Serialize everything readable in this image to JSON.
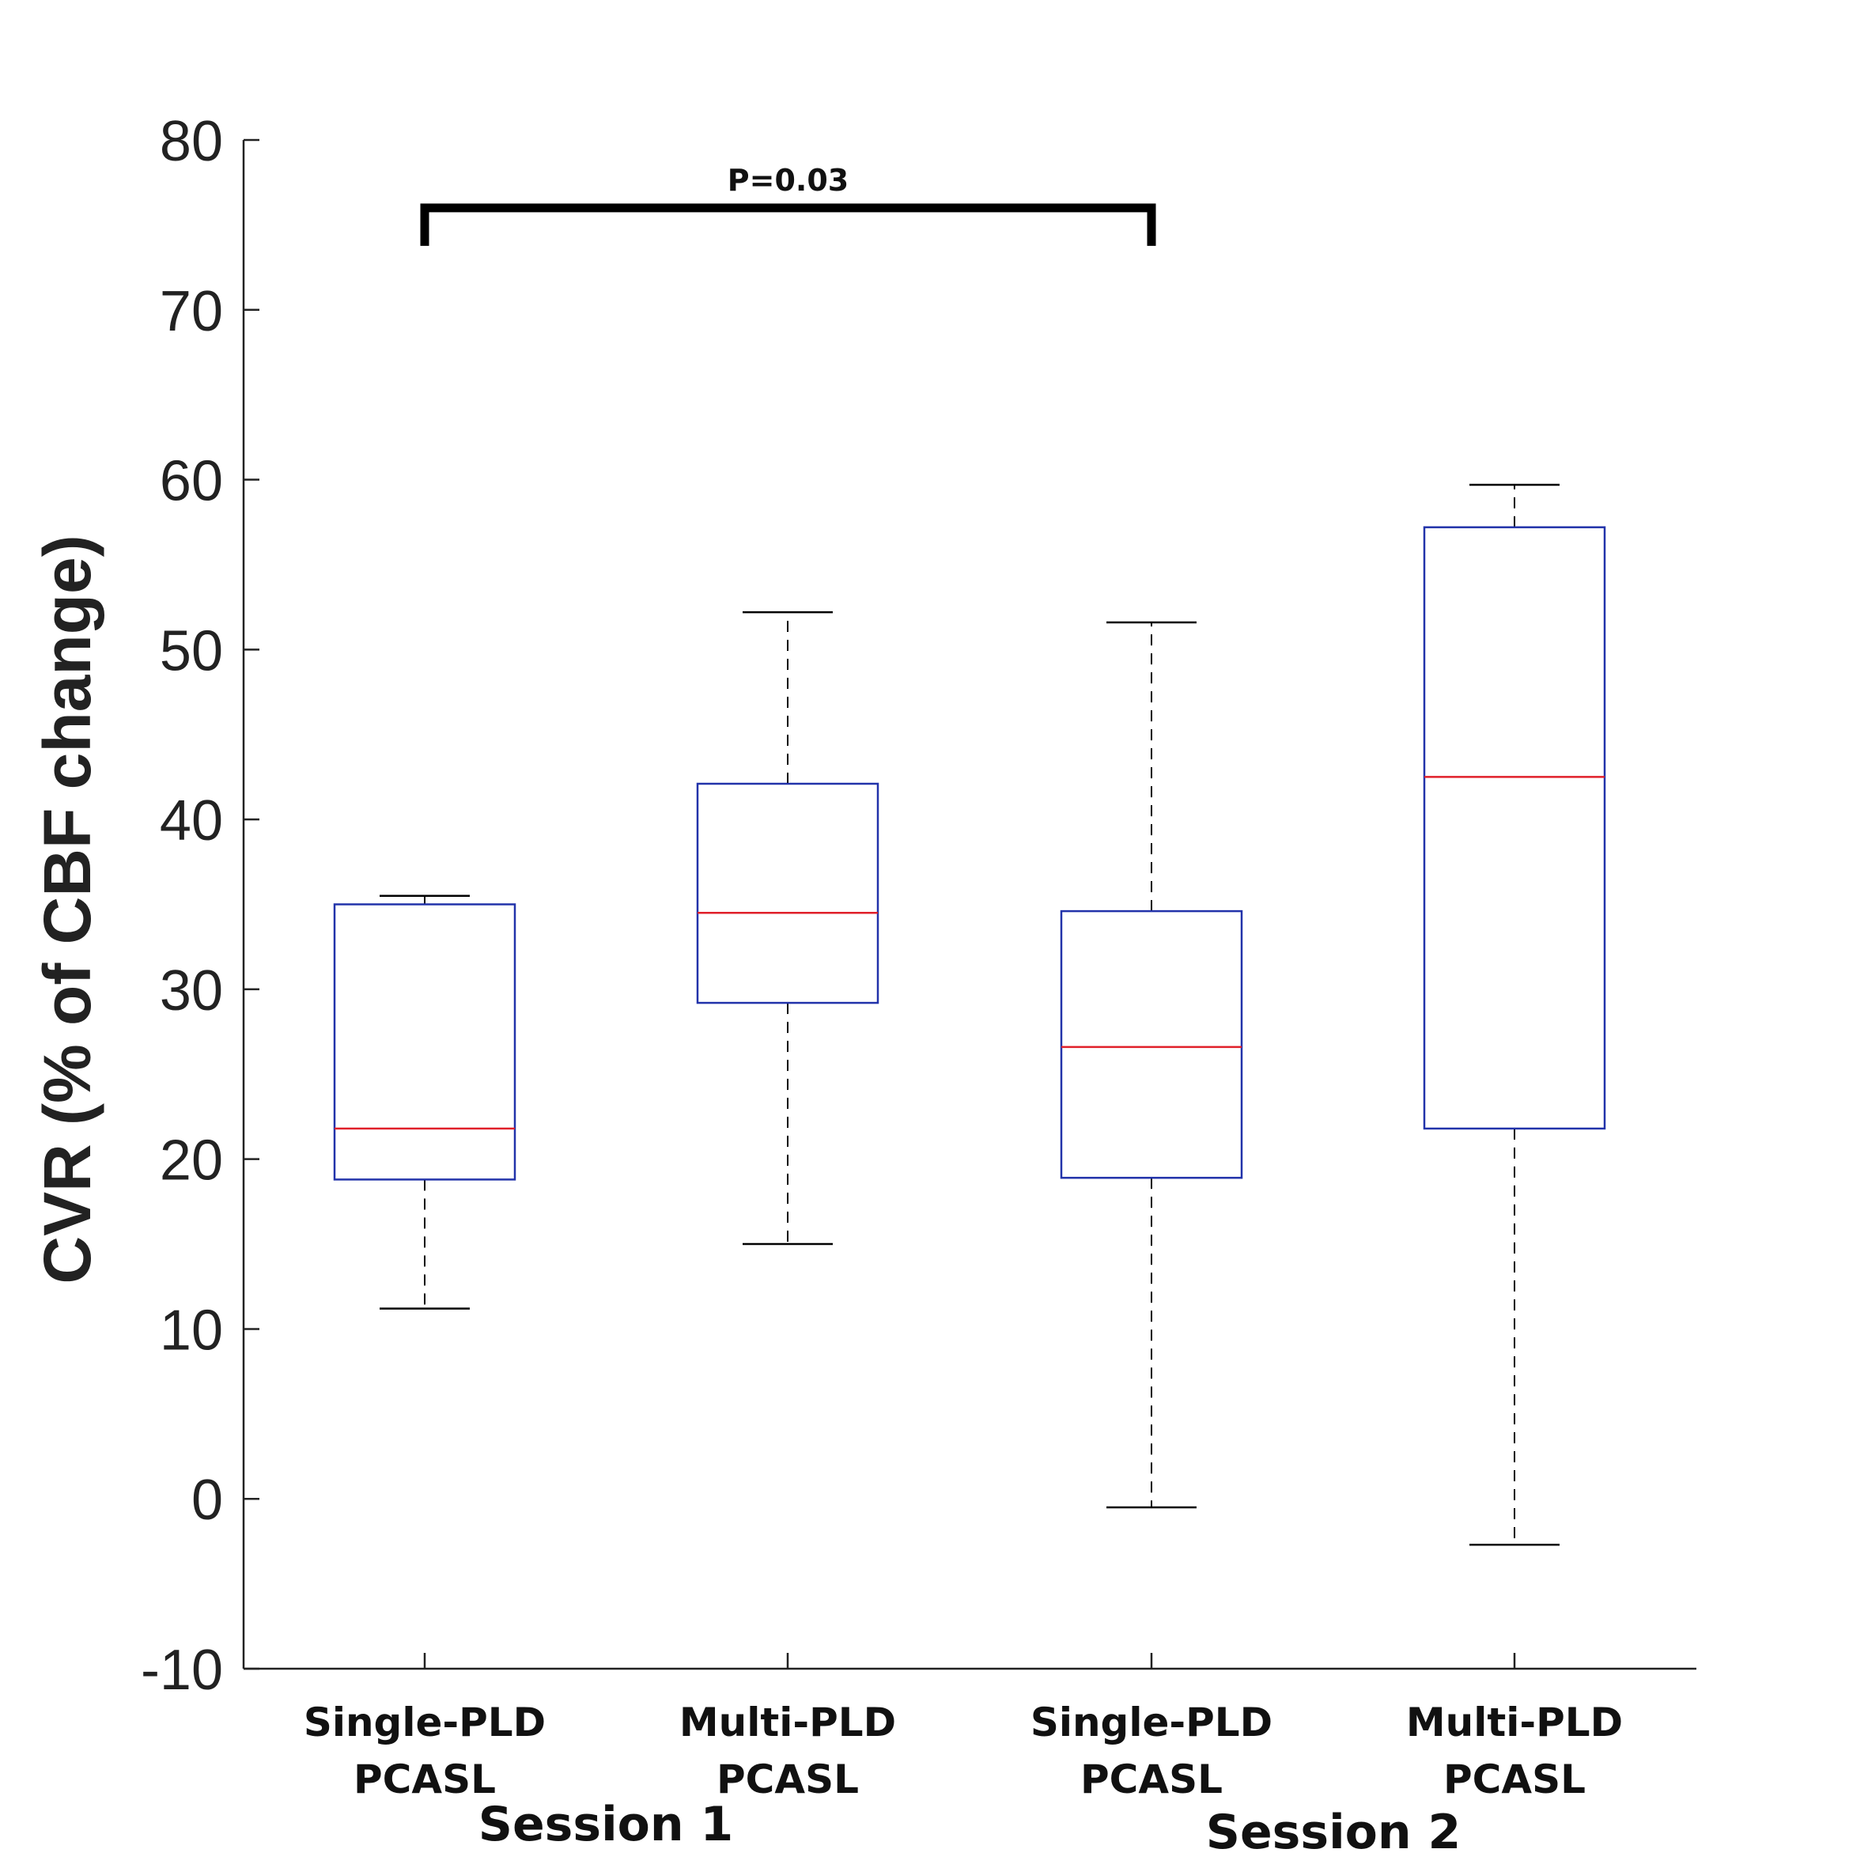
{
  "chart_data": {
    "type": "box",
    "ylabel": "CVR (% of CBF change)",
    "ylim": [
      -10,
      80
    ],
    "yticks": [
      -10,
      0,
      10,
      20,
      30,
      40,
      50,
      60,
      70,
      80
    ],
    "ytick_labels": [
      "-10",
      "0",
      "10",
      "20",
      "30",
      "40",
      "50",
      "60",
      "70",
      "80"
    ],
    "categories": [
      {
        "line1": "Single-PLD",
        "line2": "PCASL"
      },
      {
        "line1": "Multi-PLD",
        "line2": "PCASL"
      },
      {
        "line1": "Single-PLD",
        "line2": "PCASL"
      },
      {
        "line1": "Multi-PLD",
        "line2": "PCASL"
      }
    ],
    "groups": [
      {
        "label": "Session 1",
        "categories": [
          0,
          1
        ]
      },
      {
        "label": "Session 2",
        "categories": [
          2,
          3
        ]
      }
    ],
    "boxes": [
      {
        "whisker_low": 11.2,
        "q1": 18.8,
        "median": 21.8,
        "q3": 35.0,
        "whisker_high": 35.5
      },
      {
        "whisker_low": 15.0,
        "q1": 29.2,
        "median": 34.5,
        "q3": 42.1,
        "whisker_high": 52.2
      },
      {
        "whisker_low": -0.5,
        "q1": 18.9,
        "median": 26.6,
        "q3": 34.6,
        "whisker_high": 51.6
      },
      {
        "whisker_low": -2.7,
        "q1": 21.8,
        "median": 42.5,
        "q3": 57.2,
        "whisker_high": 59.7
      }
    ],
    "significance": {
      "from": 0,
      "to": 2,
      "label": "P=0.03",
      "y": 76
    },
    "colors": {
      "box": "#2233aa",
      "median": "#e0202a",
      "whisker": "#000000",
      "axis": "#222222"
    }
  }
}
